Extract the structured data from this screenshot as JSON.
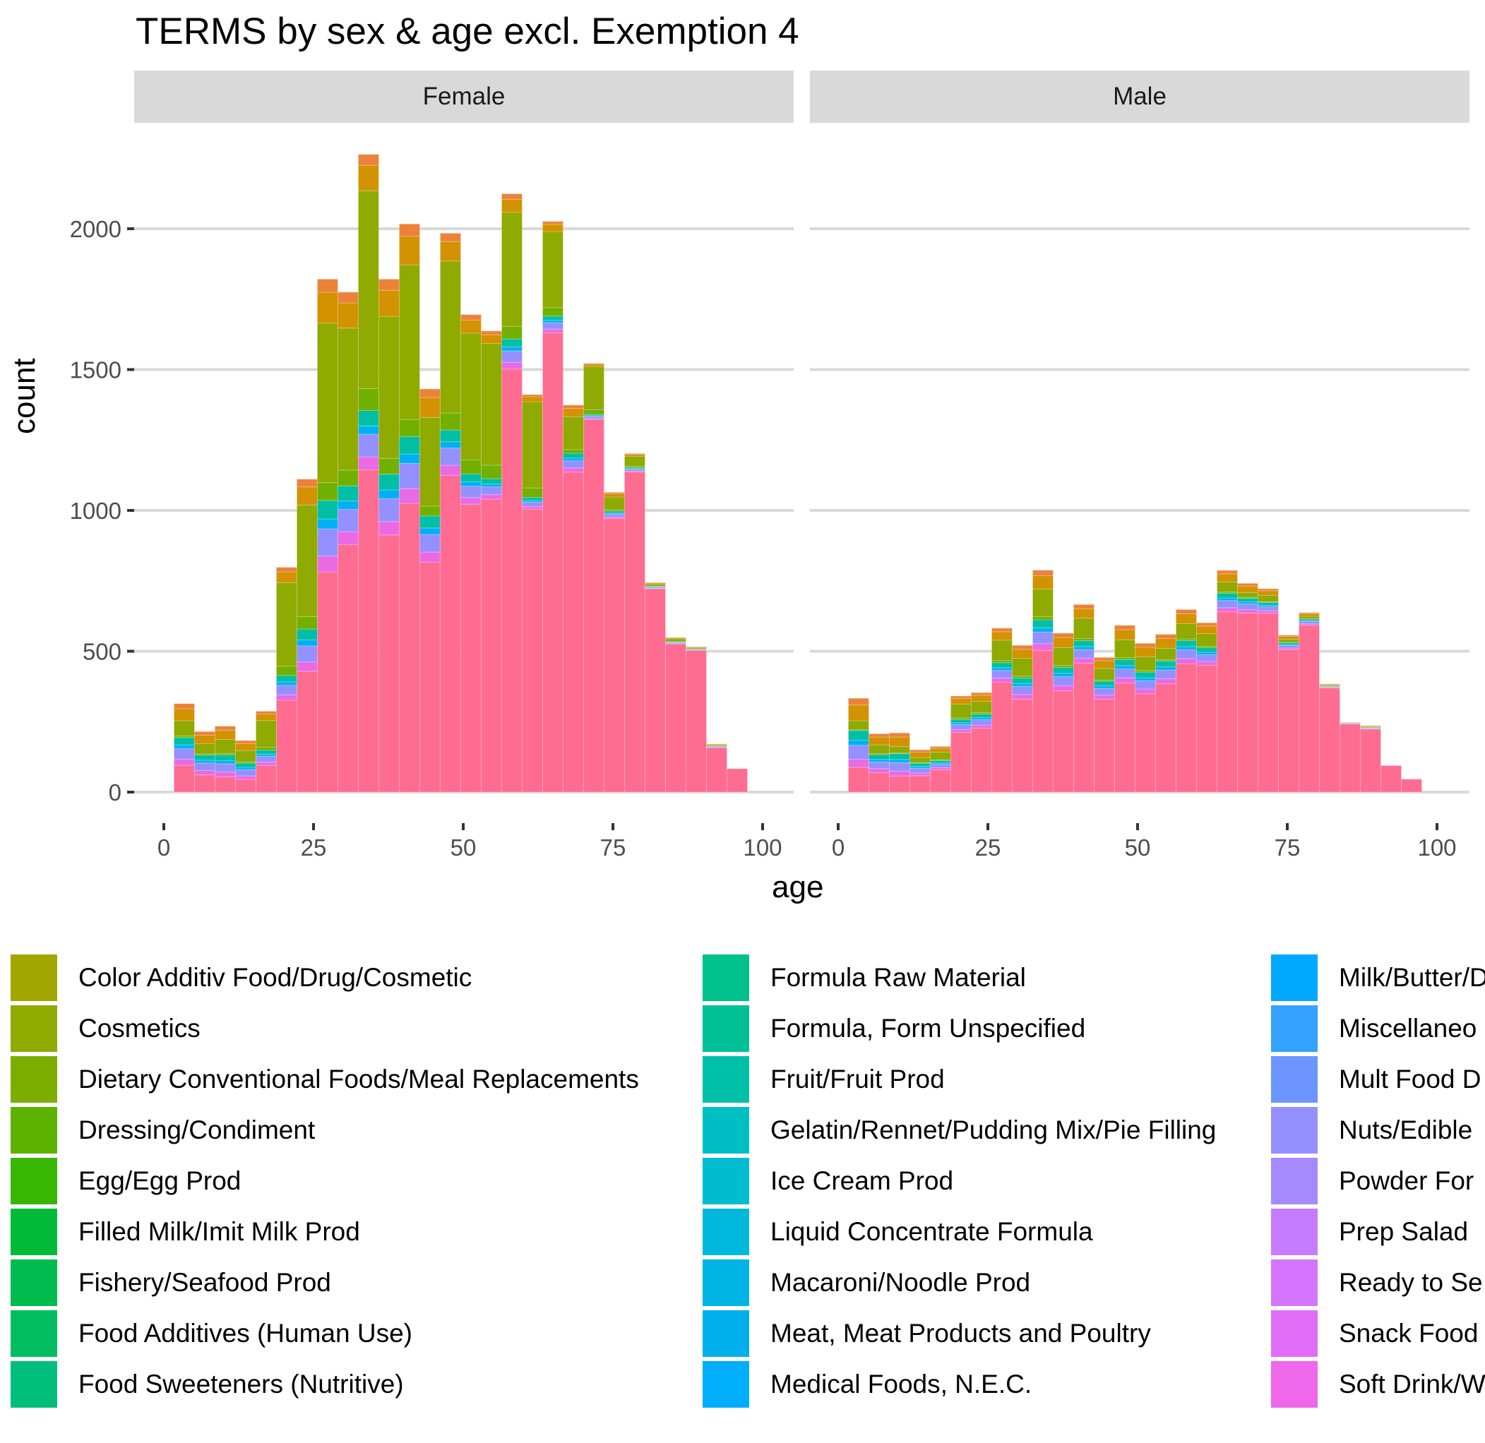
{
  "chart_data": {
    "type": "bar",
    "subtype": "stacked-histogram-faceted",
    "title": "TERMS by sex & age excl. Exemption 4",
    "xlabel": "age",
    "ylabel": "count",
    "xlim": [
      0,
      100
    ],
    "ylim": [
      0,
      2300
    ],
    "x_ticks": [
      "0",
      "25",
      "50",
      "75",
      "100"
    ],
    "y_ticks": [
      "0",
      "500",
      "1000",
      "1500",
      "2000"
    ],
    "grid": true,
    "legend_position": "bottom",
    "bin_start": 1.7,
    "bin_width": 3.42,
    "facets": [
      {
        "label": "Female",
        "totals": [
          314,
          215,
          234,
          183,
          287,
          798,
          1111,
          1821,
          1775,
          2264,
          1821,
          2017,
          1431,
          1984,
          1695,
          1637,
          2124,
          1411,
          2026,
          1374,
          1522,
          1064,
          1202,
          744,
          549,
          516,
          171,
          83
        ],
        "pink_base": [
          95,
          61,
          54,
          45,
          95,
          326,
          429,
          782,
          879,
          1144,
          913,
          1025,
          816,
          1125,
          1022,
          1040,
          1502,
          1005,
          1631,
          1136,
          1323,
          971,
          1137,
          722,
          526,
          503,
          158,
          83
        ],
        "green_cosmetics": [
          60,
          40,
          55,
          45,
          105,
          330,
          440,
          630,
          560,
          780,
          560,
          610,
          350,
          600,
          500,
          480,
          450,
          340,
          300,
          130,
          170,
          50,
          40,
          8,
          10,
          4,
          4,
          0
        ]
      },
      {
        "label": "Male",
        "totals": [
          333,
          207,
          210,
          150,
          162,
          341,
          353,
          582,
          521,
          788,
          564,
          666,
          478,
          592,
          528,
          560,
          648,
          601,
          787,
          741,
          722,
          557,
          637,
          384,
          247,
          236,
          94,
          46
        ],
        "pink_base": [
          88,
          69,
          57,
          58,
          79,
          212,
          227,
          390,
          330,
          503,
          360,
          458,
          330,
          387,
          349,
          385,
          456,
          450,
          640,
          636,
          635,
          506,
          593,
          370,
          242,
          224,
          94,
          46
        ],
        "green_cosmetics": [
          35,
          35,
          25,
          20,
          30,
          55,
          45,
          80,
          70,
          110,
          70,
          80,
          45,
          70,
          55,
          45,
          60,
          50,
          40,
          20,
          25,
          12,
          10,
          3,
          0,
          3,
          0,
          0
        ]
      }
    ],
    "series_colors": {
      "top_orange": "#ec8239",
      "top_gold": "#d39200",
      "cosmetics_green": "#8faa00",
      "dressing_green": "#72b000",
      "teal": "#00bfa5",
      "sky": "#00b0f6",
      "periwinkle": "#9590ff",
      "magenta": "#ea6ae4",
      "pink_base": "#ff6c91"
    },
    "legend": [
      {
        "label": "Color Additiv Food/Drug/Cosmetic",
        "color": "#a3a500"
      },
      {
        "label": "Cosmetics",
        "color": "#8faa00"
      },
      {
        "label": "Dietary Conventional Foods/Meal Replacements",
        "color": "#7cae00"
      },
      {
        "label": "Dressing/Condiment",
        "color": "#5bb300"
      },
      {
        "label": "Egg/Egg Prod",
        "color": "#39b600"
      },
      {
        "label": "Filled Milk/Imit Milk Prod",
        "color": "#00ba38"
      },
      {
        "label": "Fishery/Seafood Prod",
        "color": "#00bb4e"
      },
      {
        "label": "Food Additives (Human Use)",
        "color": "#00bd5f"
      },
      {
        "label": "Food Sweeteners (Nutritive)",
        "color": "#00bf7d"
      },
      {
        "label": "Formula Raw Material",
        "color": "#00c08b"
      },
      {
        "label": "Formula, Form Unspecified",
        "color": "#00c097"
      },
      {
        "label": "Fruit/Fruit Prod",
        "color": "#00c0aa"
      },
      {
        "label": "Gelatin/Rennet/Pudding Mix/Pie Filling",
        "color": "#00bfc4"
      },
      {
        "label": "Ice Cream Prod",
        "color": "#00bcd0"
      },
      {
        "label": "Liquid Concentrate Formula",
        "color": "#00b8db"
      },
      {
        "label": "Macaroni/Noodle Prod",
        "color": "#00b4e4"
      },
      {
        "label": "Meat, Meat Products and Poultry",
        "color": "#00b0ec"
      },
      {
        "label": "Medical Foods, N.E.C.",
        "color": "#00aefa"
      },
      {
        "label": "Milk/Butter/D",
        "color": "#00a9ff"
      },
      {
        "label": "Miscellaneo",
        "color": "#35a2ff"
      },
      {
        "label": "Mult Food D",
        "color": "#6d95ff"
      },
      {
        "label": "Nuts/Edible",
        "color": "#9590ff"
      },
      {
        "label": "Powder For",
        "color": "#a58aff"
      },
      {
        "label": "Prep Salad",
        "color": "#c77cff"
      },
      {
        "label": "Ready to Se",
        "color": "#d575fe"
      },
      {
        "label": "Snack Food",
        "color": "#e26ef7"
      },
      {
        "label": "Soft Drink/W",
        "color": "#ef67eb"
      }
    ]
  }
}
